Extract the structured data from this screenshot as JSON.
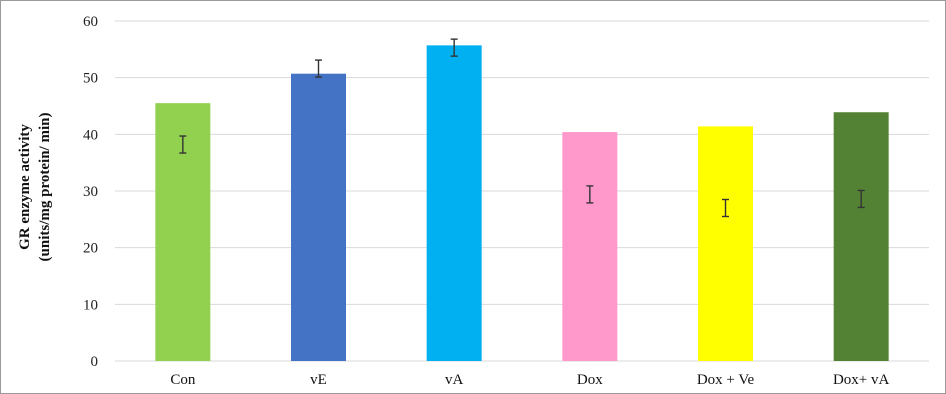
{
  "chart_data": {
    "type": "bar",
    "title": "",
    "xlabel": "",
    "ylabel_line1": "GR enzyme activity",
    "ylabel_line2": "(units/mg protein/ min)",
    "categories": [
      "Con",
      "vE",
      "vA",
      "Dox",
      "Dox + Ve",
      "Dox+ vA"
    ],
    "values": [
      45.5,
      50.7,
      55.7,
      40.4,
      41.4,
      43.9
    ],
    "error_marker_centers": [
      38.2,
      51.6,
      55.3,
      29.4,
      27.0,
      28.6
    ],
    "error_half_width": 1.5,
    "colors": [
      "#92d050",
      "#4472c4",
      "#00b0f0",
      "#ff99cc",
      "#ffff00",
      "#548235"
    ],
    "ylim": [
      0,
      60
    ],
    "yticks": [
      "0",
      "10",
      "20",
      "30",
      "40",
      "50",
      "60"
    ],
    "grid": true,
    "legend": "none"
  }
}
